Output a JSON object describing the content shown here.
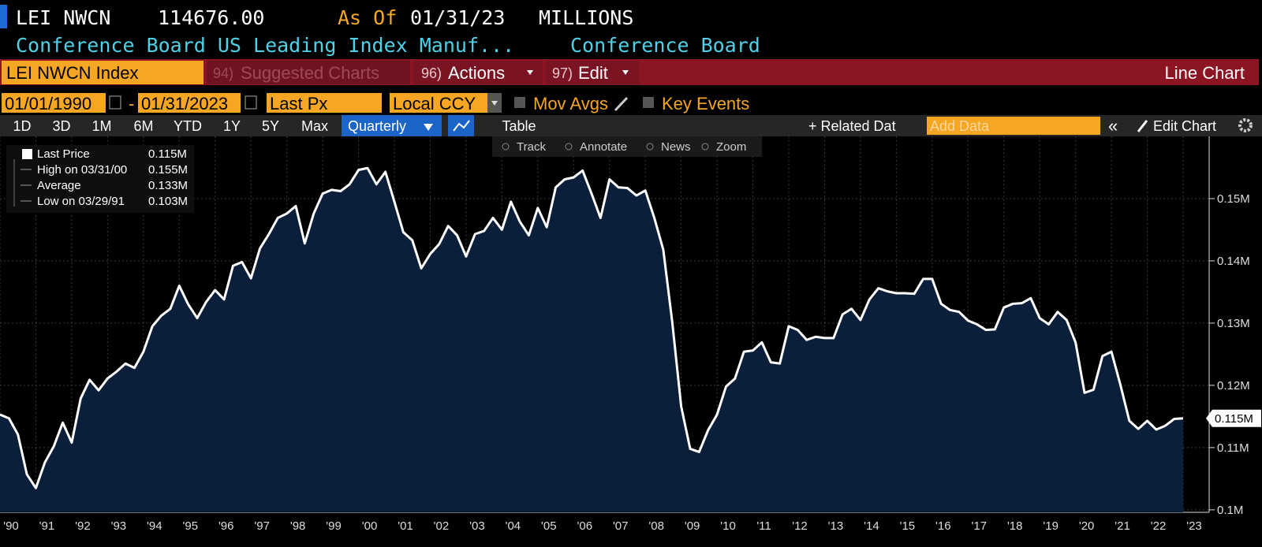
{
  "header": {
    "ticker": "LEI NWCN",
    "price": "114676.00",
    "as_of_label": "As Of",
    "as_of_date": "01/31/23",
    "units": "MILLIONS",
    "description": "Conference Board US Leading Index Manuf...",
    "source": "Conference Board"
  },
  "menu": {
    "security": "LEI NWCN Index",
    "suggested_num": "94)",
    "suggested": "Suggested Charts",
    "actions_num": "96)",
    "actions": "Actions",
    "edit_num": "97)",
    "edit": "Edit",
    "chart_type": "Line Chart"
  },
  "controls": {
    "start_date": "01/01/1990",
    "separator": "-",
    "end_date": "01/31/2023",
    "field": "Last Px",
    "currency": "Local CCY",
    "mov_avgs": "Mov Avgs",
    "key_events": "Key Events"
  },
  "tabs": {
    "periods": [
      "1D",
      "3D",
      "1M",
      "6M",
      "YTD",
      "1Y",
      "5Y",
      "Max"
    ],
    "frequency": "Quarterly",
    "table": "Table",
    "related": "+ Related Dat",
    "add_data": "Add Data",
    "collapse": "«",
    "edit_chart": "Edit Chart"
  },
  "chart_tools": [
    "Track",
    "Annotate",
    "News",
    "Zoom"
  ],
  "chart_data": {
    "type": "area",
    "legend": [
      {
        "label": "Last Price",
        "value": "0.115M"
      },
      {
        "label": "High on 03/31/00",
        "value": "0.155M"
      },
      {
        "label": "Average",
        "value": "0.133M"
      },
      {
        "label": "Low on 03/29/91",
        "value": "0.103M"
      }
    ],
    "last_label": "0.115M",
    "color": "#ffffff",
    "fill": "#0b1f3a",
    "x_labels": [
      "'90",
      "'91",
      "'92",
      "'93",
      "'94",
      "'95",
      "'96",
      "'97",
      "'98",
      "'99",
      "'00",
      "'01",
      "'02",
      "'03",
      "'04",
      "'05",
      "'06",
      "'07",
      "'08",
      "'09",
      "'10",
      "'11",
      "'12",
      "'13",
      "'14",
      "'15",
      "'16",
      "'17",
      "'18",
      "'19",
      "'20",
      "'21",
      "'22",
      "'23"
    ],
    "values": [
      0.1153,
      0.1147,
      0.1121,
      0.1057,
      0.1035,
      0.1076,
      0.1102,
      0.114,
      0.1108,
      0.1179,
      0.1209,
      0.1192,
      0.1211,
      0.1222,
      0.1235,
      0.1228,
      0.1254,
      0.1295,
      0.1312,
      0.1323,
      0.136,
      0.133,
      0.1308,
      0.1334,
      0.1353,
      0.1338,
      0.1392,
      0.1398,
      0.1372,
      0.142,
      0.1443,
      0.1469,
      0.1476,
      0.1488,
      0.1428,
      0.1476,
      0.1508,
      0.1514,
      0.1512,
      0.1523,
      0.1546,
      0.1549,
      0.1523,
      0.1543,
      0.1495,
      0.1446,
      0.1433,
      0.1388,
      0.1411,
      0.1427,
      0.1456,
      0.1441,
      0.1407,
      0.1443,
      0.1448,
      0.1469,
      0.145,
      0.1495,
      0.1463,
      0.1441,
      0.1485,
      0.1454,
      0.1518,
      0.1531,
      0.1534,
      0.1545,
      0.1508,
      0.1469,
      0.1531,
      0.1518,
      0.1517,
      0.1505,
      0.1513,
      0.1469,
      0.1418,
      0.1302,
      0.1166,
      0.1098,
      0.1093,
      0.1128,
      0.1153,
      0.1198,
      0.1211,
      0.1254,
      0.1256,
      0.1269,
      0.1237,
      0.1235,
      0.1295,
      0.1289,
      0.1273,
      0.1278,
      0.1276,
      0.1276,
      0.1314,
      0.1323,
      0.1305,
      0.1338,
      0.1356,
      0.1351,
      0.1348,
      0.1348,
      0.1347,
      0.1371,
      0.1371,
      0.1331,
      0.1321,
      0.1318,
      0.1304,
      0.1298,
      0.1289,
      0.129,
      0.1325,
      0.1331,
      0.1332,
      0.134,
      0.1308,
      0.1298,
      0.1318,
      0.1305,
      0.1269,
      0.1188,
      0.1193,
      0.1247,
      0.1254,
      0.1201,
      0.1143,
      0.113,
      0.1143,
      0.1129,
      0.1135,
      0.1146,
      0.1147
    ],
    "ylim": [
      0.0996,
      0.16
    ],
    "yticks": [
      {
        "value": 0.1,
        "label": "0.1M"
      },
      {
        "value": 0.11,
        "label": "0.11M"
      },
      {
        "value": 0.12,
        "label": "0.12M"
      },
      {
        "value": 0.13,
        "label": "0.13M"
      },
      {
        "value": 0.14,
        "label": "0.14M"
      },
      {
        "value": 0.15,
        "label": "0.15M"
      }
    ],
    "grid": true
  }
}
